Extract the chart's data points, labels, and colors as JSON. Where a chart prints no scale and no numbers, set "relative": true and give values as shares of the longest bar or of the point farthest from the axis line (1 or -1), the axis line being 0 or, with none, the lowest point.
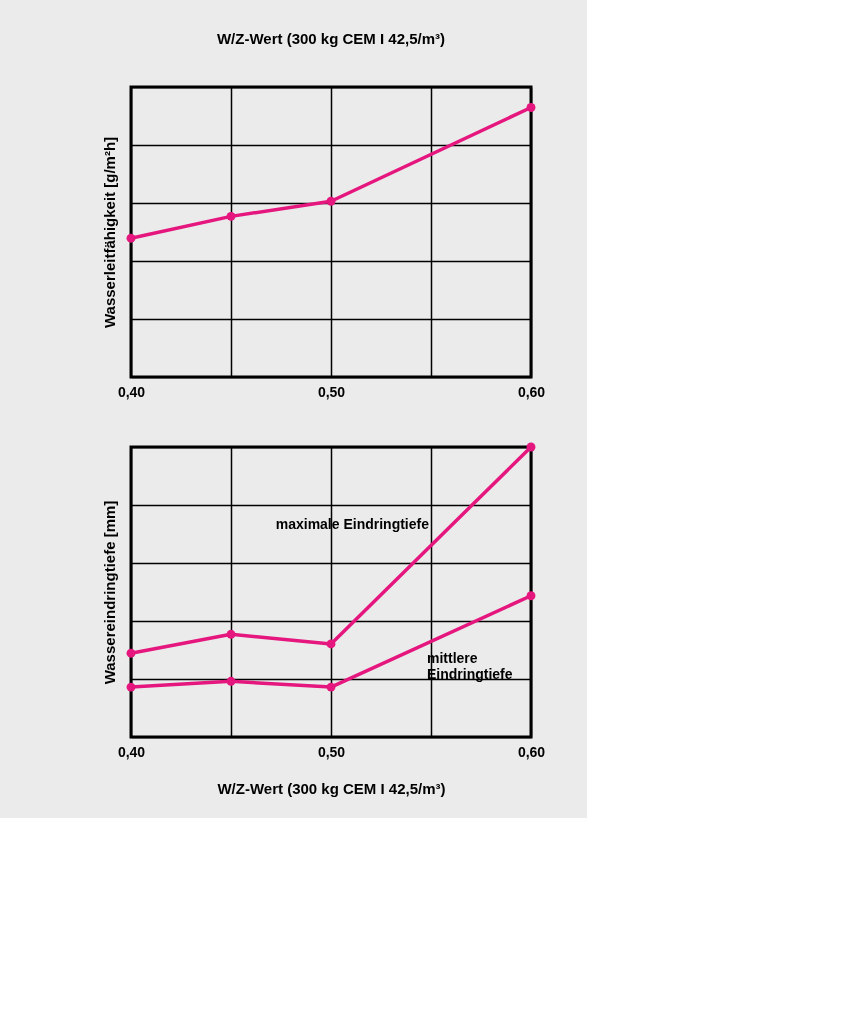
{
  "chart_data": [
    {
      "type": "line",
      "title": "W/Z-Wert (300 kg CEM I 42,5/m³)",
      "ylabel": "Wasserleitfähigkeit [g/m²h]",
      "relative": true,
      "x": [
        0.4,
        0.45,
        0.5,
        0.6
      ],
      "xlim": [
        0.4,
        0.6
      ],
      "xticks": [
        {
          "value": 0.4,
          "label": "0,40"
        },
        {
          "value": 0.45,
          "label": null
        },
        {
          "value": 0.5,
          "label": "0,50"
        },
        {
          "value": 0.55,
          "label": null
        },
        {
          "value": 0.6,
          "label": "0,60"
        }
      ],
      "series": [
        {
          "color": "#e5177e",
          "values": [
            0.515,
            0.596,
            0.652,
            1.0
          ]
        }
      ],
      "grid": true,
      "marker": "circle",
      "line_style": "solid",
      "legend": false
    },
    {
      "type": "line",
      "xlabel": "W/Z-Wert (300 kg CEM I 42,5/m³)",
      "ylabel": "Wassereindringtiefe [mm]",
      "relative": true,
      "x": [
        0.4,
        0.45,
        0.5,
        0.6
      ],
      "xlim": [
        0.4,
        0.6
      ],
      "xticks": [
        {
          "value": 0.4,
          "label": "0,40"
        },
        {
          "value": 0.45,
          "label": null
        },
        {
          "value": 0.5,
          "label": "0,50"
        },
        {
          "value": 0.55,
          "label": null
        },
        {
          "value": 0.6,
          "label": "0,60"
        }
      ],
      "series": [
        {
          "name": "maximale Eindringtiefe",
          "color": "#e5177e",
          "values": [
            0.289,
            0.354,
            0.321,
            1.0
          ]
        },
        {
          "name": "mittlere\nEindringtiefe",
          "color": "#e5177e",
          "values": [
            0.172,
            0.192,
            0.172,
            0.487
          ]
        }
      ],
      "grid": true,
      "marker": "circle",
      "line_style": "solid",
      "legend": false
    }
  ]
}
